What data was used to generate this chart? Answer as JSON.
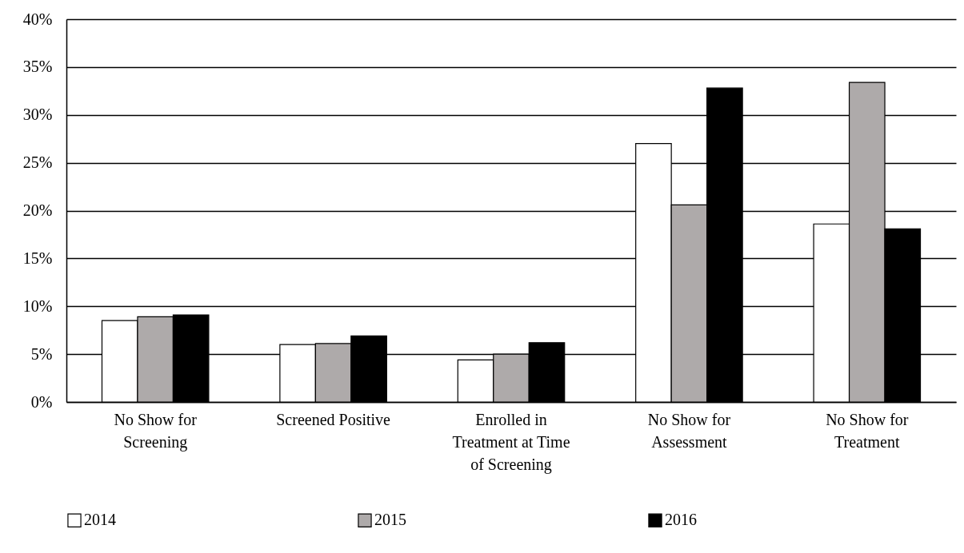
{
  "chart_data": {
    "type": "bar",
    "categories": [
      "No Show for Screening",
      "Screened Positive",
      "Enrolled in Treatment at Time of Screening",
      "No Show for Assessment",
      "No Show for Treatment"
    ],
    "series": [
      {
        "name": "2014",
        "color": "#ffffff",
        "values": [
          8.5,
          6.0,
          4.4,
          27.0,
          18.6
        ]
      },
      {
        "name": "2015",
        "color": "#aeaaaa",
        "values": [
          8.9,
          6.1,
          5.0,
          20.6,
          33.4
        ]
      },
      {
        "name": "2016",
        "color": "#000000",
        "values": [
          9.1,
          6.9,
          6.2,
          32.8,
          18.1
        ]
      }
    ],
    "ylim": [
      0,
      40
    ],
    "yticks": [
      {
        "value": 0,
        "label": "0%"
      },
      {
        "value": 5,
        "label": "5%"
      },
      {
        "value": 10,
        "label": "10%"
      },
      {
        "value": 15,
        "label": "15%"
      },
      {
        "value": 20,
        "label": "20%"
      },
      {
        "value": 25,
        "label": "25%"
      },
      {
        "value": 30,
        "label": "30%"
      },
      {
        "value": 35,
        "label": "35%"
      },
      {
        "value": 40,
        "label": "40%"
      }
    ],
    "grid": "y",
    "legend": "bottom"
  }
}
